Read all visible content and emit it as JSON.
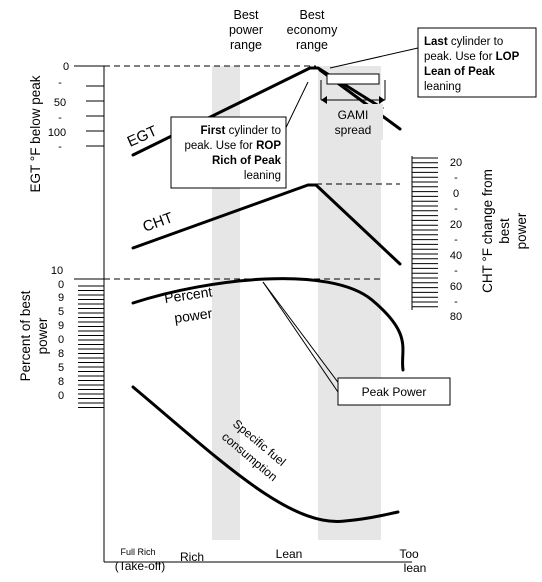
{
  "bands": {
    "best_power": [
      "Best",
      "power",
      "range"
    ],
    "best_economy": [
      "Best",
      "economy",
      "range"
    ]
  },
  "egt": {
    "axis_title": "EGT °F below peak",
    "ticks": [
      "0",
      "-",
      "50",
      "-",
      "100",
      "-"
    ],
    "curve_label": "EGT"
  },
  "cht": {
    "curve_label": "CHT",
    "axis_title": [
      "CHT °F change from",
      "best",
      "power"
    ],
    "ticks": [
      "20",
      "-",
      "0",
      "-",
      "20",
      "-",
      "40",
      "-",
      "60",
      "-",
      "80"
    ]
  },
  "power": {
    "axis_title": [
      "Percent of best",
      "power"
    ],
    "ticks": [
      "10",
      "0",
      "9",
      "5",
      "9",
      "0",
      "8",
      "5",
      "8",
      "0"
    ],
    "curve_label": [
      "Percent",
      "power"
    ]
  },
  "sfc_label": [
    "Specific fuel",
    "consumption"
  ],
  "gami_label": [
    "GAMI",
    "spread"
  ],
  "callouts": {
    "first": {
      "line1_bold": "First",
      "line1_rest": " cylinder to",
      "line2_rest": "peak. Use for ",
      "line2_bold": "ROP",
      "line3_bold": "Rich of Peak",
      "line4": "leaning"
    },
    "last": {
      "line1_bold": "Last",
      "line1_rest": " cylinder to",
      "line2_rest": "peak. Use for ",
      "line2_bold": "LOP",
      "line3_bold": "Lean of Peak",
      "line4": "leaning"
    },
    "peak_power": "Peak Power"
  },
  "x_axis": {
    "full_rich": "Full Rich",
    "take_off": "(Take-off)",
    "rich": "Rich",
    "lean": "Lean",
    "too": "Too",
    "too_lean": "lean"
  }
}
